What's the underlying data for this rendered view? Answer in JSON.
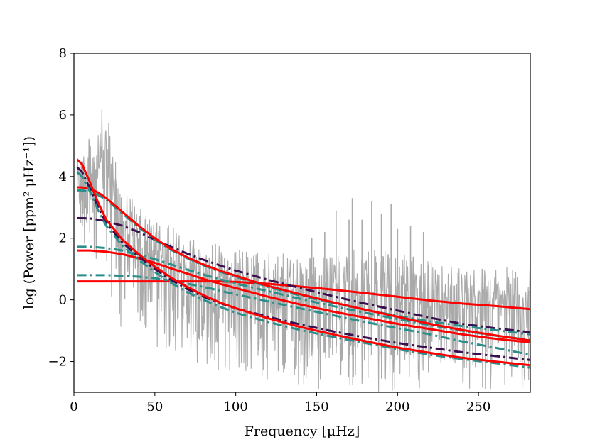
{
  "chart_data": {
    "type": "line",
    "title": "",
    "xlabel": "Frequency [μHz]",
    "ylabel": "log (Power [ppm² μHz⁻¹])",
    "xlim": [
      0,
      282
    ],
    "ylim": [
      -3,
      8
    ],
    "x_ticks": [
      0,
      50,
      100,
      150,
      200,
      250
    ],
    "y_ticks": [
      -2,
      0,
      2,
      4,
      6,
      8
    ],
    "x_tick_labels": [
      "0",
      "50",
      "100",
      "150",
      "200",
      "250"
    ],
    "y_tick_labels": [
      "−2",
      "0",
      "2",
      "4",
      "6",
      "8"
    ],
    "grid": false,
    "legend": "none",
    "colors": {
      "spectrum": "#aaaaaa",
      "red": "#ff0000",
      "purple": "#3b0f4f",
      "teal": "#2a8f8a"
    },
    "spectrum": {
      "style": "noisy gray power spectrum",
      "x": [
        2,
        5,
        10,
        15,
        18,
        20,
        22,
        25,
        30,
        40,
        50,
        60,
        70,
        80,
        90,
        100,
        110,
        120,
        130,
        140,
        150,
        160,
        170,
        180,
        190,
        200,
        210,
        220,
        230,
        240,
        250,
        260,
        270,
        280
      ],
      "envelope_upper": [
        5.3,
        5.0,
        5.3,
        5.8,
        6.35,
        6.2,
        5.6,
        4.9,
        3.8,
        3.0,
        2.6,
        2.4,
        2.2,
        2.0,
        1.8,
        1.65,
        1.6,
        1.55,
        1.5,
        1.5,
        1.45,
        1.4,
        1.6,
        1.7,
        1.6,
        1.55,
        1.4,
        1.3,
        1.2,
        1.2,
        1.15,
        1.1,
        1.05,
        1.0
      ],
      "envelope_lower": [
        2.0,
        1.5,
        0.8,
        0.5,
        0.3,
        0.0,
        -0.3,
        -0.6,
        -1.0,
        -1.3,
        -1.6,
        -1.8,
        -2.0,
        -2.1,
        -2.3,
        -2.5,
        -2.6,
        -2.7,
        -2.8,
        -2.8,
        -2.9,
        -2.9,
        -3.0,
        -3.0,
        -3.0,
        -3.0,
        -3.0,
        -3.0,
        -3.0,
        -3.0,
        -3.0,
        -3.0,
        -3.0,
        -3.0
      ],
      "peaks": [
        {
          "x": 172,
          "y": 3.3
        },
        {
          "x": 184,
          "y": 3.2
        },
        {
          "x": 162,
          "y": 2.9
        },
        {
          "x": 196,
          "y": 3.1
        },
        {
          "x": 170,
          "y": 2.6
        },
        {
          "x": 178,
          "y": 2.6
        },
        {
          "x": 190,
          "y": 2.8
        },
        {
          "x": 208,
          "y": 2.4
        },
        {
          "x": 155,
          "y": 2.2
        },
        {
          "x": 200,
          "y": 2.3
        },
        {
          "x": 216,
          "y": 2.2
        },
        {
          "x": 147,
          "y": 2.0
        }
      ]
    },
    "series": [
      {
        "color": "red",
        "style": "solid",
        "x": [
          2,
          5,
          10,
          15,
          20,
          30,
          40,
          50,
          60,
          70,
          80,
          90,
          100,
          120,
          140,
          160,
          180,
          200,
          220,
          240,
          260,
          282
        ],
        "values": [
          0.6,
          0.6,
          0.6,
          0.6,
          0.6,
          0.6,
          0.6,
          0.6,
          0.6,
          0.6,
          0.6,
          0.6,
          0.58,
          0.52,
          0.43,
          0.33,
          0.22,
          0.1,
          -0.02,
          -0.12,
          -0.2,
          -0.3
        ]
      },
      {
        "color": "teal",
        "style": "dashdot",
        "x": [
          2,
          5,
          10,
          15,
          20,
          30,
          40,
          50,
          60,
          70,
          80,
          90,
          100,
          120,
          140,
          160,
          180,
          200,
          220,
          240,
          260,
          282
        ],
        "values": [
          0.8,
          0.8,
          0.8,
          0.8,
          0.8,
          0.78,
          0.75,
          0.7,
          0.62,
          0.52,
          0.42,
          0.3,
          0.18,
          -0.05,
          -0.28,
          -0.5,
          -0.72,
          -0.92,
          -1.12,
          -1.35,
          -1.55,
          -1.78
        ]
      },
      {
        "color": "red",
        "style": "solid",
        "x": [
          2,
          5,
          10,
          15,
          20,
          30,
          40,
          50,
          60,
          70,
          80,
          90,
          100,
          120,
          140,
          160,
          180,
          200,
          220,
          240,
          260,
          282
        ],
        "values": [
          1.6,
          1.6,
          1.6,
          1.58,
          1.56,
          1.48,
          1.35,
          1.2,
          1.02,
          0.85,
          0.68,
          0.52,
          0.38,
          0.1,
          -0.15,
          -0.38,
          -0.58,
          -0.78,
          -0.95,
          -1.12,
          -1.26,
          -1.38
        ]
      },
      {
        "color": "teal",
        "style": "dashdot",
        "x": [
          2,
          5,
          10,
          15,
          20,
          30,
          40,
          50,
          60,
          70,
          80,
          90,
          100,
          120,
          140,
          160,
          180,
          200,
          220,
          240,
          260,
          282
        ],
        "values": [
          1.72,
          1.72,
          1.72,
          1.7,
          1.68,
          1.6,
          1.48,
          1.32,
          1.15,
          0.98,
          0.82,
          0.67,
          0.53,
          0.28,
          0.03,
          -0.2,
          -0.42,
          -0.62,
          -0.82,
          -1.0,
          -1.16,
          -1.3
        ]
      },
      {
        "color": "purple",
        "style": "dashdot",
        "x": [
          2,
          5,
          10,
          15,
          20,
          30,
          40,
          50,
          60,
          70,
          80,
          90,
          100,
          120,
          140,
          160,
          180,
          200,
          220,
          240,
          260,
          282
        ],
        "values": [
          2.65,
          2.65,
          2.64,
          2.6,
          2.55,
          2.4,
          2.2,
          1.95,
          1.72,
          1.5,
          1.3,
          1.12,
          0.95,
          0.65,
          0.38,
          0.12,
          -0.12,
          -0.35,
          -0.58,
          -0.78,
          -0.92,
          -1.05
        ]
      },
      {
        "color": "teal",
        "style": "dashdot",
        "x": [
          2,
          5,
          10,
          15,
          20,
          30,
          40,
          50,
          60,
          70,
          80,
          90,
          100,
          120,
          140,
          160,
          180,
          200,
          220,
          240,
          260,
          282
        ],
        "values": [
          3.55,
          3.55,
          3.5,
          3.4,
          3.25,
          2.8,
          2.35,
          1.95,
          1.62,
          1.35,
          1.12,
          0.92,
          0.75,
          0.42,
          0.14,
          -0.1,
          -0.32,
          -0.52,
          -0.7,
          -0.85,
          -0.98,
          -1.12
        ]
      },
      {
        "color": "red",
        "style": "solid",
        "x": [
          2,
          5,
          10,
          15,
          20,
          30,
          40,
          50,
          60,
          70,
          80,
          90,
          100,
          120,
          140,
          160,
          180,
          200,
          220,
          240,
          260,
          282
        ],
        "values": [
          3.65,
          3.65,
          3.6,
          3.48,
          3.3,
          2.85,
          2.4,
          2.0,
          1.65,
          1.38,
          1.15,
          0.95,
          0.78,
          0.45,
          0.18,
          -0.08,
          -0.32,
          -0.55,
          -0.78,
          -0.98,
          -1.15,
          -1.32
        ]
      },
      {
        "color": "purple",
        "style": "dashdot",
        "x": [
          2,
          5,
          10,
          15,
          20,
          30,
          40,
          50,
          60,
          70,
          80,
          90,
          100,
          120,
          140,
          160,
          180,
          200,
          220,
          240,
          260,
          282
        ],
        "values": [
          4.3,
          4.15,
          3.6,
          3.0,
          2.5,
          1.85,
          1.4,
          1.0,
          0.65,
          0.35,
          0.1,
          -0.1,
          -0.28,
          -0.55,
          -0.8,
          -1.02,
          -1.22,
          -1.4,
          -1.55,
          -1.7,
          -1.82,
          -1.95
        ]
      },
      {
        "color": "teal",
        "style": "dashdot",
        "x": [
          2,
          5,
          10,
          15,
          20,
          30,
          40,
          50,
          60,
          70,
          80,
          90,
          100,
          120,
          140,
          160,
          180,
          200,
          220,
          240,
          260,
          282
        ],
        "values": [
          4.15,
          4.0,
          3.5,
          2.9,
          2.4,
          1.75,
          1.3,
          0.9,
          0.55,
          0.25,
          0.0,
          -0.22,
          -0.42,
          -0.72,
          -0.98,
          -1.2,
          -1.4,
          -1.6,
          -1.78,
          -1.92,
          -2.05,
          -2.2
        ]
      },
      {
        "color": "red",
        "style": "solid",
        "x": [
          2,
          5,
          10,
          15,
          20,
          30,
          40,
          50,
          60,
          70,
          80,
          90,
          100,
          120,
          140,
          160,
          180,
          200,
          220,
          240,
          260,
          282
        ],
        "values": [
          4.55,
          4.4,
          3.8,
          3.15,
          2.6,
          1.95,
          1.48,
          1.08,
          0.72,
          0.42,
          0.15,
          -0.08,
          -0.27,
          -0.6,
          -0.88,
          -1.12,
          -1.34,
          -1.55,
          -1.72,
          -1.88,
          -2.0,
          -2.12
        ]
      }
    ]
  }
}
